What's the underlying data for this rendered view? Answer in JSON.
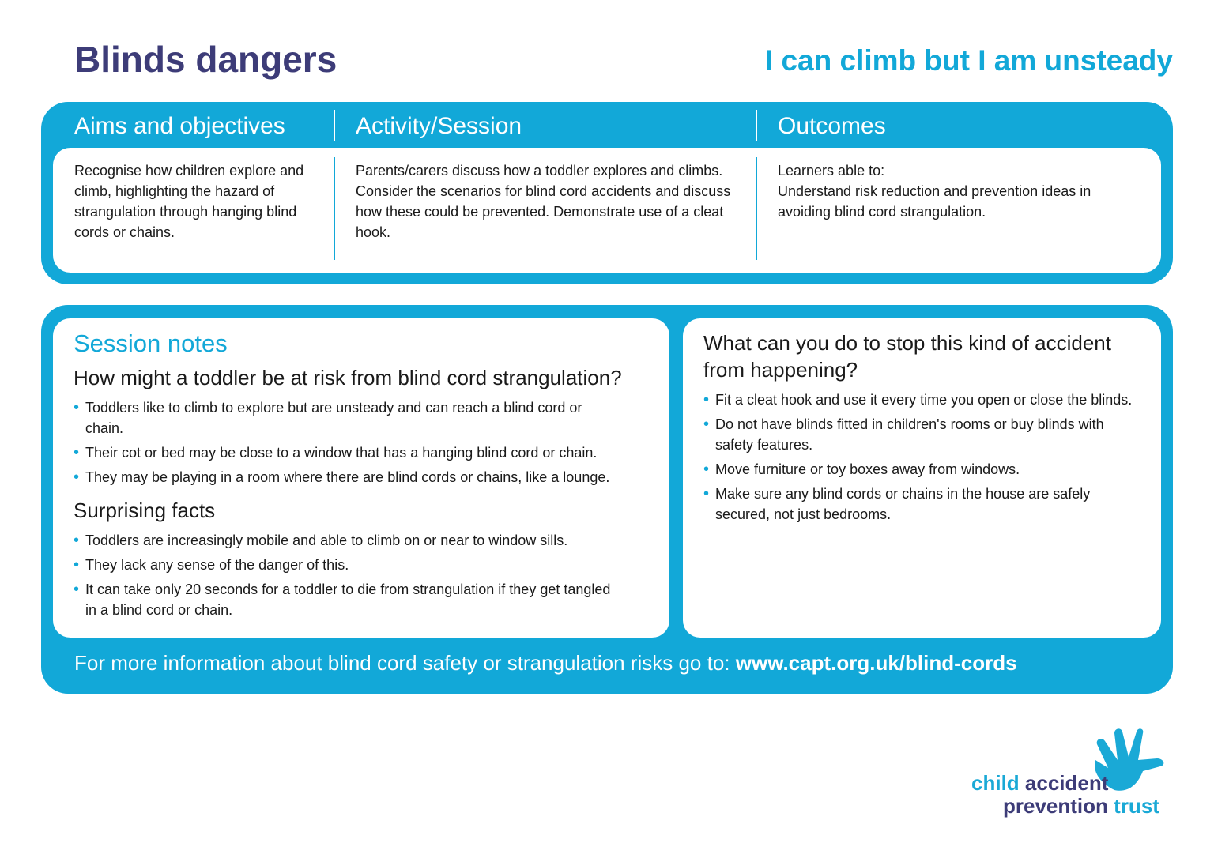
{
  "title": "Blinds dangers",
  "subtitle": "I can climb but I am unsteady",
  "columns": [
    {
      "heading": "Aims and objectives",
      "text": "Recognise how children explore and climb, highlighting the hazard of strangulation through hanging blind cords or chains."
    },
    {
      "heading": "Activity/Session",
      "text": "Parents/carers discuss how a toddler explores and climbs. Consider the scenarios for blind cord accidents and discuss how these could be prevented. Demonstrate use of a cleat hook."
    },
    {
      "heading": "Outcomes",
      "text": "Learners able to:",
      "text2": "Understand risk reduction and prevention ideas in avoiding blind cord strangulation."
    }
  ],
  "session_notes": {
    "label": "Session notes",
    "q1": "How might a toddler be at risk from blind cord strangulation?",
    "q1_items": [
      "Toddlers like to climb to explore but are unsteady and can reach a blind cord or chain.",
      "Their cot or bed may be close to a window that has a hanging blind cord or chain.",
      "They may be playing in a room where there are blind cords or chains, like a lounge."
    ],
    "q2": "Surprising facts",
    "q2_items": [
      "Toddlers are increasingly mobile and able to climb on or near to window sills.",
      "They lack any sense of the danger of this.",
      "It can take only 20 seconds for a toddler to die from strangulation if they get tangled in a blind cord or chain."
    ]
  },
  "prevention": {
    "heading": "What can you do to stop this kind of accident from happening?",
    "items": [
      "Fit a cleat hook and use it every time you open or close the blinds.",
      "Do not have blinds fitted in children's rooms or buy blinds with safety features.",
      "Move furniture or toy boxes away from windows.",
      "Make sure any blind cords or chains in the house are safely secured, not just bedrooms."
    ]
  },
  "footer": {
    "text": "For more information about blind cord safety or strangulation risks go to: ",
    "link": "www.capt.org.uk/blind-cords"
  },
  "logo": {
    "word1": "child",
    "word2": "accident",
    "word3": "prevention",
    "word4": "trust",
    "icon": "hand-icon"
  },
  "colors": {
    "navy": "#3d3c78",
    "cyan": "#12a8d8"
  }
}
